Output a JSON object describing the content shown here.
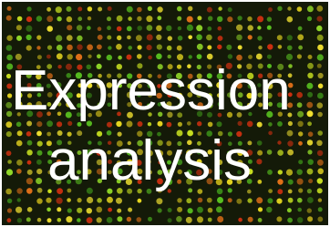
{
  "title_lines": [
    "Expression",
    "analysis"
  ]
}
